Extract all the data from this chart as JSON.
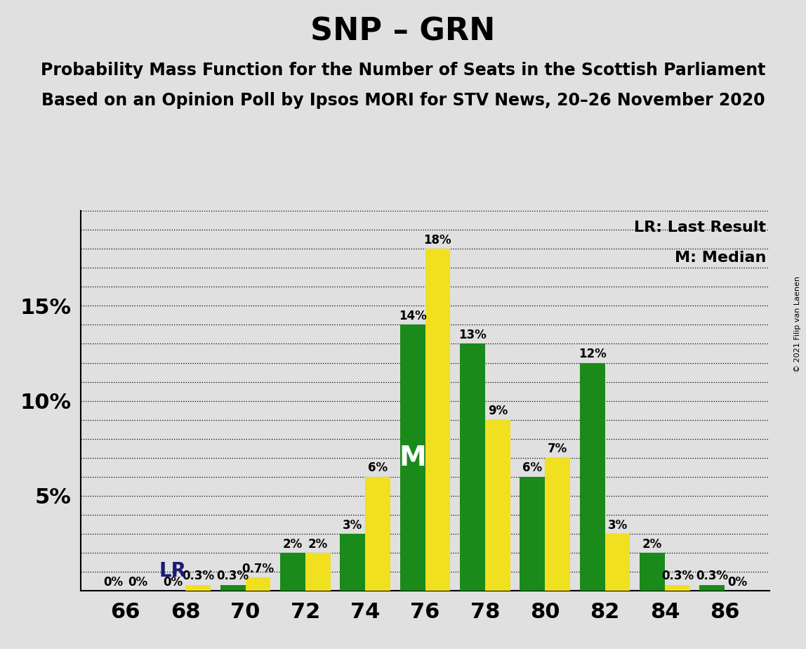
{
  "title": "SNP – GRN",
  "subtitle1": "Probability Mass Function for the Number of Seats in the Scottish Parliament",
  "subtitle2": "Based on an Opinion Poll by Ipsos MORI for STV News, 20–26 November 2020",
  "copyright": "© 2021 Filip van Laenen",
  "legend_lr": "LR: Last Result",
  "legend_m": "M: Median",
  "seats": [
    66,
    68,
    70,
    72,
    74,
    76,
    78,
    80,
    82,
    84,
    86
  ],
  "snp_values": [
    0.0,
    0.0,
    0.3,
    2.0,
    3.0,
    14.0,
    13.0,
    6.0,
    12.0,
    2.0,
    0.3
  ],
  "grn_values": [
    0.0,
    0.3,
    0.7,
    2.0,
    6.0,
    18.0,
    9.0,
    7.0,
    3.0,
    0.3,
    0.0
  ],
  "snp_labels": [
    "0%",
    "0%",
    "0.3%",
    "2%",
    "3%",
    "14%",
    "13%",
    "6%",
    "12%",
    "2%",
    "0.3%"
  ],
  "grn_labels": [
    "0%",
    "0.3%",
    "0.7%",
    "2%",
    "6%",
    "18%",
    "9%",
    "7%",
    "3%",
    "0.3%",
    "0%"
  ],
  "snp_color": "#1a8a1a",
  "grn_color": "#f0e020",
  "background_color": "#e0e0e0",
  "lr_seat_index": 1,
  "median_seat_index": 5,
  "ylim_max": 20,
  "bar_width": 0.42,
  "title_fontsize": 32,
  "subtitle_fontsize": 17,
  "xlabel_fontsize": 22,
  "ylabel_fontsize": 22,
  "annotation_fontsize": 12,
  "lr_fontsize": 20,
  "m_fontsize": 28,
  "legend_fontsize": 16,
  "copyright_fontsize": 8,
  "minor_yticks": [
    1,
    2,
    3,
    4,
    5,
    6,
    7,
    8,
    9,
    10,
    11,
    12,
    13,
    14,
    15,
    16,
    17,
    18,
    19,
    20
  ],
  "major_ytick_labels": {
    "5": "5%",
    "10": "10%",
    "15": "15%"
  }
}
